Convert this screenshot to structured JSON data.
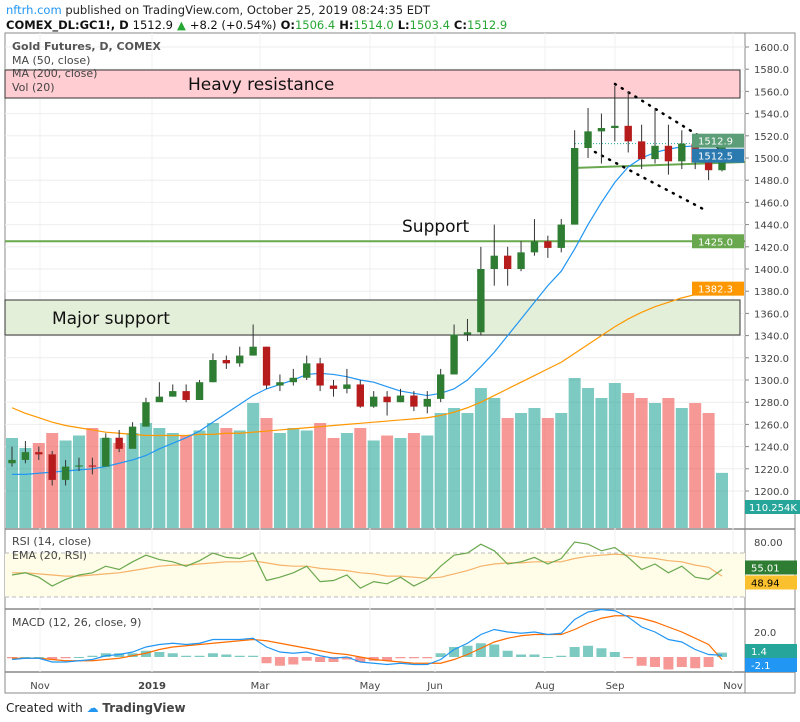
{
  "header": {
    "site": "nftrh.com",
    "published": "published on TradingView.com, October 25, 2019 08:24:35 EDT",
    "symbol": "COMEX_DL:GC1!, D",
    "last": "1512.9",
    "change": "+8.2 (+0.54%)",
    "o_label": "O:",
    "o": "1506.4",
    "h_label": "H:",
    "h": "1514.0",
    "l_label": "L:",
    "l": "1503.4",
    "c_label": "C:",
    "c": "1512.9"
  },
  "legend": {
    "title": "Gold Futures, D, COMEX",
    "ma50": "MA (50, close)",
    "ma200": "MA (200, close)",
    "vol": "Vol (20)",
    "rsi": "RSI (14, close)",
    "ema": "EMA (20, RSI)",
    "macd": "MACD (12, 26, close, 9)"
  },
  "annotations": {
    "heavy_resistance": "Heavy resistance",
    "support": "Support",
    "major_support": "Major support"
  },
  "footer": {
    "created": "Created with",
    "brand": "TradingView"
  },
  "colors": {
    "up": "#26a69a",
    "down": "#ef5350",
    "candle_up": "#2e7d32",
    "candle_down": "#b71c1c",
    "ma50": "#2196f3",
    "ma200": "#ff9800",
    "resistance": "#ffcdd2",
    "support": "#e3efd9",
    "rsi": "#6aa84f",
    "ema": "#f6b26b",
    "macd": "#2196f3",
    "signal": "#ff6d00"
  },
  "chart_data": {
    "type": "candlestick",
    "x_ticks": [
      "Nov",
      "2019",
      "Mar",
      "May",
      "Jun",
      "Aug",
      "Sep",
      "Nov"
    ],
    "price_axis": {
      "ylim": [
        1180,
        1610
      ],
      "ticks": [
        "1600.0",
        "1580.0",
        "1560.0",
        "1540.0",
        "1520.0",
        "1500.0",
        "1480.0",
        "1460.0",
        "1440.0",
        "1420.0",
        "1400.0",
        "1380.0",
        "1360.0",
        "1340.0",
        "1320.0",
        "1300.0",
        "1280.0",
        "1260.0",
        "1240.0",
        "1220.0",
        "1200.0"
      ]
    },
    "price_tags": {
      "last": "1512.9",
      "ma50": "1512.5",
      "support": "1425.0",
      "ma200": "1382.3",
      "volume": "110.254K",
      "rsi": "55.01",
      "ema": "48.94",
      "macd": "1.4",
      "signal": "-2.1"
    },
    "weeks": [
      "2018-10-19",
      "2018-10-26",
      "2018-11-02",
      "2018-11-09",
      "2018-11-16",
      "2018-11-23",
      "2018-11-30",
      "2018-12-07",
      "2018-12-14",
      "2018-12-21",
      "2018-12-28",
      "2019-01-04",
      "2019-01-11",
      "2019-01-18",
      "2019-01-25",
      "2019-02-01",
      "2019-02-08",
      "2019-02-15",
      "2019-02-22",
      "2019-03-01",
      "2019-03-08",
      "2019-03-15",
      "2019-03-22",
      "2019-03-29",
      "2019-04-05",
      "2019-04-12",
      "2019-04-19",
      "2019-04-26",
      "2019-05-03",
      "2019-05-10",
      "2019-05-17",
      "2019-05-24",
      "2019-05-31",
      "2019-06-07",
      "2019-06-14",
      "2019-06-21",
      "2019-06-28",
      "2019-07-05",
      "2019-07-12",
      "2019-07-19",
      "2019-07-26",
      "2019-08-02",
      "2019-08-09",
      "2019-08-16",
      "2019-08-23",
      "2019-08-30",
      "2019-09-06",
      "2019-09-13",
      "2019-09-20",
      "2019-09-27",
      "2019-10-04",
      "2019-10-11",
      "2019-10-18",
      "2019-10-25"
    ],
    "close": [
      1228,
      1235,
      1233,
      1210,
      1222,
      1223,
      1222,
      1248,
      1238,
      1258,
      1280,
      1285,
      1290,
      1282,
      1298,
      1318,
      1315,
      1322,
      1330,
      1295,
      1298,
      1302,
      1315,
      1295,
      1292,
      1296,
      1276,
      1285,
      1280,
      1286,
      1276,
      1283,
      1305,
      1341,
      1343,
      1400,
      1412,
      1400,
      1415,
      1425,
      1419,
      1440,
      1509,
      1524,
      1527,
      1529,
      1515,
      1499,
      1511,
      1497,
      1513,
      1496,
      1489,
      1512.9
    ],
    "high": [
      1240,
      1245,
      1240,
      1236,
      1228,
      1230,
      1230,
      1252,
      1255,
      1262,
      1284,
      1298,
      1296,
      1296,
      1300,
      1324,
      1322,
      1330,
      1350,
      1330,
      1305,
      1310,
      1322,
      1320,
      1300,
      1310,
      1300,
      1290,
      1290,
      1292,
      1290,
      1290,
      1310,
      1350,
      1355,
      1420,
      1440,
      1420,
      1425,
      1445,
      1430,
      1445,
      1525,
      1545,
      1540,
      1565,
      1560,
      1530,
      1545,
      1530,
      1525,
      1520,
      1500,
      1514
    ],
    "low": [
      1222,
      1225,
      1228,
      1205,
      1205,
      1218,
      1215,
      1228,
      1235,
      1240,
      1258,
      1282,
      1285,
      1280,
      1282,
      1298,
      1310,
      1312,
      1322,
      1292,
      1290,
      1295,
      1300,
      1290,
      1285,
      1288,
      1275,
      1275,
      1268,
      1280,
      1272,
      1270,
      1280,
      1305,
      1335,
      1340,
      1385,
      1385,
      1398,
      1412,
      1410,
      1415,
      1440,
      1500,
      1495,
      1515,
      1505,
      1490,
      1495,
      1485,
      1490,
      1490,
      1480,
      1488
    ],
    "ma50": [
      1215,
      1215,
      1216,
      1217,
      1218,
      1219,
      1220,
      1222,
      1225,
      1228,
      1232,
      1238,
      1243,
      1248,
      1254,
      1262,
      1270,
      1278,
      1286,
      1292,
      1296,
      1300,
      1305,
      1306,
      1305,
      1303,
      1300,
      1298,
      1294,
      1290,
      1288,
      1286,
      1288,
      1292,
      1300,
      1312,
      1325,
      1340,
      1355,
      1370,
      1385,
      1398,
      1418,
      1440,
      1460,
      1478,
      1492,
      1500,
      1505,
      1508,
      1510,
      1511,
      1511,
      1512.5
    ],
    "ma200": [
      1275,
      1270,
      1266,
      1262,
      1259,
      1257,
      1255,
      1253,
      1252,
      1251,
      1250,
      1250,
      1250,
      1250,
      1251,
      1251,
      1252,
      1252,
      1253,
      1254,
      1255,
      1256,
      1257,
      1258,
      1259,
      1260,
      1261,
      1262,
      1263,
      1264,
      1265,
      1266,
      1268,
      1271,
      1275,
      1280,
      1286,
      1292,
      1298,
      1304,
      1310,
      1316,
      1324,
      1332,
      1340,
      1348,
      1355,
      1361,
      1366,
      1370,
      1374,
      1377,
      1380,
      1382.3
    ],
    "volume": [
      180,
      160,
      170,
      190,
      175,
      185,
      200,
      180,
      170,
      190,
      210,
      200,
      190,
      185,
      195,
      210,
      200,
      195,
      250,
      220,
      190,
      200,
      195,
      210,
      180,
      190,
      200,
      175,
      185,
      180,
      190,
      185,
      230,
      240,
      230,
      280,
      260,
      220,
      230,
      240,
      220,
      230,
      300,
      280,
      260,
      290,
      270,
      260,
      250,
      260,
      240,
      250,
      230,
      110.254
    ],
    "rsi": [
      50,
      52,
      48,
      40,
      46,
      50,
      52,
      58,
      55,
      62,
      68,
      64,
      62,
      58,
      63,
      70,
      66,
      65,
      70,
      45,
      48,
      52,
      58,
      44,
      45,
      50,
      38,
      44,
      42,
      48,
      40,
      46,
      58,
      68,
      70,
      78,
      72,
      60,
      62,
      66,
      60,
      65,
      80,
      78,
      72,
      75,
      66,
      55,
      60,
      52,
      58,
      48,
      46,
      55.01
    ],
    "ema": [
      52,
      52,
      51,
      50,
      49,
      49,
      50,
      51,
      52,
      54,
      56,
      58,
      59,
      59,
      60,
      61,
      62,
      62,
      63,
      61,
      59,
      58,
      58,
      56,
      55,
      54,
      52,
      51,
      49,
      49,
      48,
      47,
      48,
      51,
      54,
      58,
      60,
      61,
      61,
      62,
      62,
      62,
      65,
      67,
      68,
      69,
      68,
      66,
      65,
      63,
      62,
      59,
      57,
      48.94
    ],
    "macd": [
      -2,
      -1,
      -1,
      -4,
      -4,
      -3,
      -2,
      1,
      2,
      4,
      8,
      10,
      11,
      10,
      11,
      14,
      14,
      14,
      15,
      8,
      4,
      3,
      4,
      1,
      -1,
      0,
      -4,
      -5,
      -6,
      -5,
      -6,
      -6,
      -2,
      6,
      11,
      18,
      22,
      20,
      19,
      20,
      18,
      19,
      30,
      36,
      38,
      37,
      32,
      24,
      20,
      14,
      12,
      6,
      2,
      1.4
    ],
    "signal": [
      -1,
      -1,
      -1,
      -2,
      -3,
      -3,
      -3,
      -2,
      -1,
      1,
      3,
      6,
      8,
      9,
      10,
      11,
      12,
      13,
      14,
      13,
      11,
      9,
      7,
      5,
      3,
      2,
      0,
      -2,
      -3,
      -4,
      -5,
      -5,
      -5,
      -2,
      2,
      7,
      12,
      15,
      17,
      18,
      18,
      18,
      22,
      27,
      31,
      33,
      33,
      31,
      28,
      24,
      20,
      15,
      10,
      -2.1
    ]
  }
}
